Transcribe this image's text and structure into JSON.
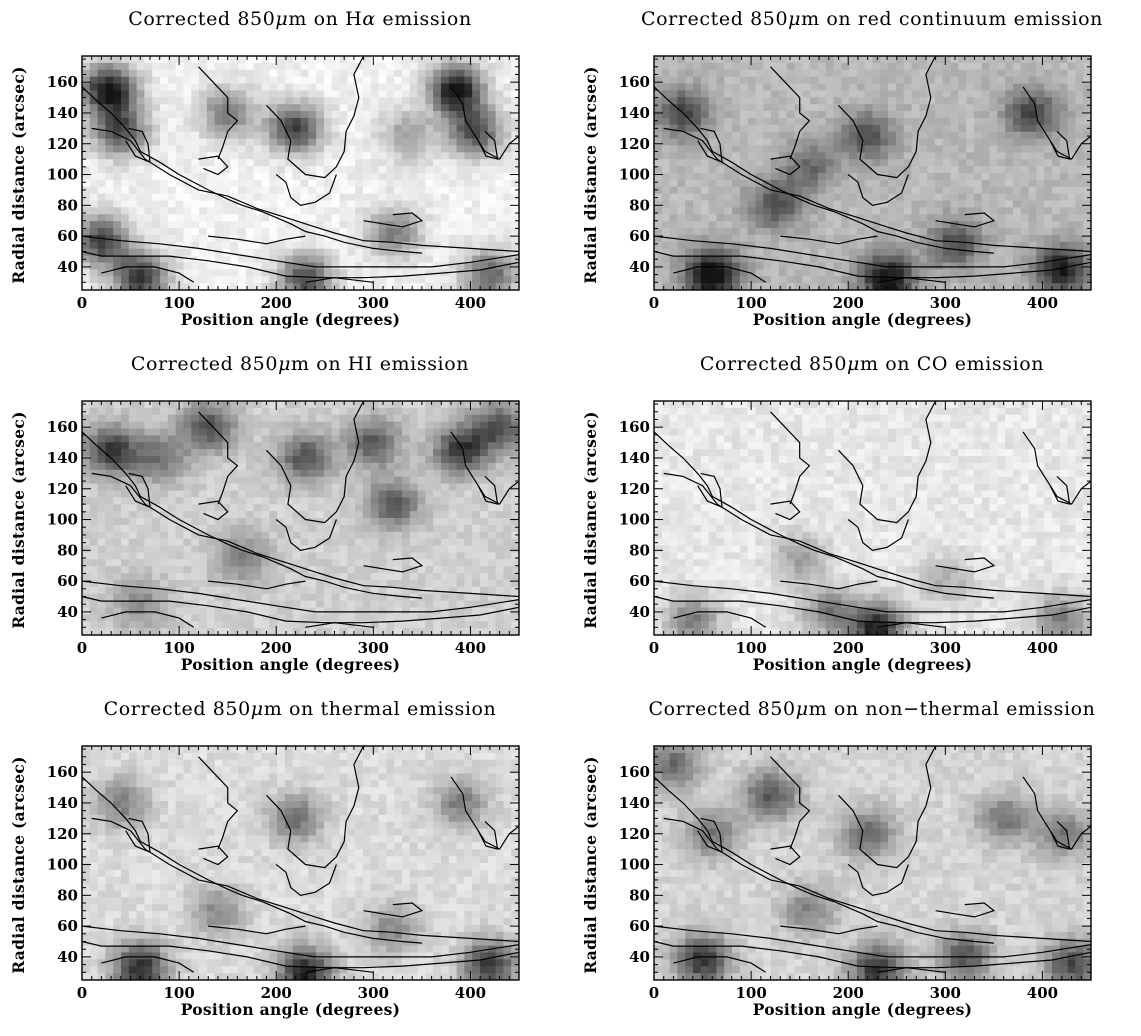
{
  "chart_data": [
    {
      "type": "heatmap",
      "title_prefix": "Corrected 850",
      "title_mu": "μ",
      "title_suffix": "m on H",
      "title_greek": "α",
      "title_tail": " emission",
      "xlabel": "Position angle (degrees)",
      "ylabel": "Radial distance (arcsec)",
      "xlim": [
        0,
        450
      ],
      "ylim": [
        25,
        177
      ],
      "xticks": [
        0,
        100,
        200,
        300,
        400
      ],
      "yticks": [
        40,
        60,
        80,
        100,
        120,
        140,
        160
      ],
      "colormap": "grayscale (darker = brighter emission)",
      "background_level": 0.06,
      "dark_regions": [
        {
          "x": 28,
          "y": 155,
          "strength": 0.95
        },
        {
          "x": 40,
          "y": 128,
          "strength": 0.7
        },
        {
          "x": 220,
          "y": 130,
          "strength": 0.75
        },
        {
          "x": 385,
          "y": 155,
          "strength": 0.95
        },
        {
          "x": 405,
          "y": 128,
          "strength": 0.7
        },
        {
          "x": 150,
          "y": 140,
          "strength": 0.5
        },
        {
          "x": 335,
          "y": 125,
          "strength": 0.35
        },
        {
          "x": 20,
          "y": 57,
          "strength": 0.75
        },
        {
          "x": 60,
          "y": 33,
          "strength": 0.8
        },
        {
          "x": 230,
          "y": 32,
          "strength": 0.7
        },
        {
          "x": 420,
          "y": 35,
          "strength": 0.6
        },
        {
          "x": 320,
          "y": 62,
          "strength": 0.5
        }
      ]
    },
    {
      "type": "heatmap",
      "title_prefix": "Corrected 850",
      "title_mu": "μ",
      "title_suffix": "m on red continuum",
      "title_greek": "",
      "title_tail": " emission",
      "xlabel": "Position angle (degrees)",
      "ylabel": "Radial distance (arcsec)",
      "xlim": [
        0,
        450
      ],
      "ylim": [
        25,
        177
      ],
      "xticks": [
        0,
        100,
        200,
        300,
        400
      ],
      "yticks": [
        40,
        60,
        80,
        100,
        120,
        140,
        160
      ],
      "colormap": "grayscale (darker = brighter emission)",
      "background_level": 0.3,
      "dark_regions": [
        {
          "x": 30,
          "y": 140,
          "strength": 0.5
        },
        {
          "x": 220,
          "y": 125,
          "strength": 0.45
        },
        {
          "x": 390,
          "y": 140,
          "strength": 0.5
        },
        {
          "x": 160,
          "y": 105,
          "strength": 0.35
        },
        {
          "x": 125,
          "y": 80,
          "strength": 0.45
        },
        {
          "x": 60,
          "y": 35,
          "strength": 0.8
        },
        {
          "x": 240,
          "y": 32,
          "strength": 0.75
        },
        {
          "x": 420,
          "y": 38,
          "strength": 0.7
        },
        {
          "x": 310,
          "y": 55,
          "strength": 0.45
        }
      ]
    },
    {
      "type": "heatmap",
      "title_prefix": "Corrected 850",
      "title_mu": "μ",
      "title_suffix": "m on HI",
      "title_greek": "",
      "title_tail": " emission",
      "xlabel": "Position angle (degrees)",
      "ylabel": "Radial distance (arcsec)",
      "xlim": [
        0,
        450
      ],
      "ylim": [
        25,
        177
      ],
      "xticks": [
        0,
        100,
        200,
        300,
        400
      ],
      "yticks": [
        40,
        60,
        80,
        100,
        120,
        140,
        160
      ],
      "colormap": "grayscale (darker = brighter emission)",
      "background_level": 0.2,
      "dark_regions": [
        {
          "x": 30,
          "y": 145,
          "strength": 0.65
        },
        {
          "x": 130,
          "y": 160,
          "strength": 0.55
        },
        {
          "x": 230,
          "y": 140,
          "strength": 0.55
        },
        {
          "x": 300,
          "y": 150,
          "strength": 0.5
        },
        {
          "x": 320,
          "y": 110,
          "strength": 0.5
        },
        {
          "x": 390,
          "y": 145,
          "strength": 0.65
        },
        {
          "x": 430,
          "y": 160,
          "strength": 0.55
        },
        {
          "x": 80,
          "y": 140,
          "strength": 0.4
        },
        {
          "x": 165,
          "y": 75,
          "strength": 0.35
        },
        {
          "x": 60,
          "y": 45,
          "strength": 0.3
        }
      ]
    },
    {
      "type": "heatmap",
      "title_prefix": "Corrected 850",
      "title_mu": "μ",
      "title_suffix": "m on CO",
      "title_greek": "",
      "title_tail": " emission",
      "xlabel": "Position angle (degrees)",
      "ylabel": "Radial distance (arcsec)",
      "xlim": [
        0,
        450
      ],
      "ylim": [
        25,
        177
      ],
      "xticks": [
        0,
        100,
        200,
        300,
        400
      ],
      "yticks": [
        40,
        60,
        80,
        100,
        120,
        140,
        160
      ],
      "colormap": "grayscale (darker = brighter emission)",
      "background_level": 0.1,
      "dark_regions": [
        {
          "x": 230,
          "y": 30,
          "strength": 0.85
        },
        {
          "x": 180,
          "y": 40,
          "strength": 0.45
        },
        {
          "x": 40,
          "y": 35,
          "strength": 0.45
        },
        {
          "x": 420,
          "y": 35,
          "strength": 0.45
        },
        {
          "x": 150,
          "y": 75,
          "strength": 0.3
        },
        {
          "x": 300,
          "y": 60,
          "strength": 0.25
        }
      ]
    },
    {
      "type": "heatmap",
      "title_prefix": "Corrected 850",
      "title_mu": "μ",
      "title_suffix": "m on thermal",
      "title_greek": "",
      "title_tail": " emission",
      "xlabel": "Position angle (degrees)",
      "ylabel": "Radial distance (arcsec)",
      "xlim": [
        0,
        450
      ],
      "ylim": [
        25,
        177
      ],
      "xticks": [
        0,
        100,
        200,
        300,
        400
      ],
      "yticks": [
        40,
        60,
        80,
        100,
        120,
        140,
        160
      ],
      "colormap": "grayscale (darker = brighter emission)",
      "background_level": 0.15,
      "dark_regions": [
        {
          "x": 40,
          "y": 140,
          "strength": 0.4
        },
        {
          "x": 220,
          "y": 130,
          "strength": 0.45
        },
        {
          "x": 390,
          "y": 140,
          "strength": 0.4
        },
        {
          "x": 60,
          "y": 33,
          "strength": 0.75
        },
        {
          "x": 230,
          "y": 30,
          "strength": 0.8
        },
        {
          "x": 420,
          "y": 35,
          "strength": 0.7
        },
        {
          "x": 140,
          "y": 70,
          "strength": 0.35
        },
        {
          "x": 320,
          "y": 58,
          "strength": 0.35
        }
      ]
    },
    {
      "type": "heatmap",
      "title_prefix": "Corrected 850",
      "title_mu": "μ",
      "title_suffix": "m on non−thermal",
      "title_greek": "",
      "title_tail": " emission",
      "xlabel": "Position angle (degrees)",
      "ylabel": "Radial distance (arcsec)",
      "xlim": [
        0,
        450
      ],
      "ylim": [
        25,
        177
      ],
      "xticks": [
        0,
        100,
        200,
        300,
        400
      ],
      "yticks": [
        40,
        60,
        80,
        100,
        120,
        140,
        160
      ],
      "colormap": "grayscale (darker = brighter emission)",
      "background_level": 0.18,
      "dark_regions": [
        {
          "x": 20,
          "y": 165,
          "strength": 0.45
        },
        {
          "x": 120,
          "y": 145,
          "strength": 0.55
        },
        {
          "x": 60,
          "y": 120,
          "strength": 0.4
        },
        {
          "x": 220,
          "y": 120,
          "strength": 0.45
        },
        {
          "x": 360,
          "y": 130,
          "strength": 0.4
        },
        {
          "x": 420,
          "y": 120,
          "strength": 0.4
        },
        {
          "x": 50,
          "y": 38,
          "strength": 0.7
        },
        {
          "x": 230,
          "y": 32,
          "strength": 0.7
        },
        {
          "x": 320,
          "y": 40,
          "strength": 0.55
        },
        {
          "x": 430,
          "y": 35,
          "strength": 0.6
        },
        {
          "x": 160,
          "y": 70,
          "strength": 0.35
        }
      ]
    }
  ],
  "contour_overlay": {
    "description_source": "same contour set drawn on every panel",
    "lines": [
      [
        [
          0,
          60
        ],
        [
          40,
          57
        ],
        [
          80,
          55
        ],
        [
          120,
          52
        ],
        [
          160,
          48
        ],
        [
          200,
          44
        ],
        [
          240,
          40
        ],
        [
          280,
          40
        ],
        [
          320,
          40
        ],
        [
          360,
          40
        ],
        [
          400,
          43
        ],
        [
          450,
          48
        ]
      ],
      [
        [
          0,
          50
        ],
        [
          20,
          47
        ],
        [
          50,
          47
        ],
        [
          90,
          47
        ],
        [
          130,
          44
        ],
        [
          170,
          40
        ],
        [
          210,
          34
        ],
        [
          250,
          33
        ],
        [
          290,
          33
        ],
        [
          330,
          34
        ],
        [
          370,
          36
        ],
        [
          410,
          38
        ],
        [
          450,
          43
        ]
      ],
      [
        [
          20,
          36
        ],
        [
          45,
          40
        ],
        [
          75,
          40
        ],
        [
          100,
          36
        ],
        [
          115,
          30
        ]
      ],
      [
        [
          230,
          30
        ],
        [
          260,
          33
        ],
        [
          300,
          30
        ]
      ],
      [
        [
          0,
          157
        ],
        [
          15,
          148
        ],
        [
          30,
          140
        ],
        [
          45,
          130
        ],
        [
          55,
          122
        ],
        [
          60,
          115
        ],
        [
          80,
          108
        ],
        [
          100,
          100
        ],
        [
          130,
          90
        ],
        [
          150,
          84
        ],
        [
          165,
          80
        ],
        [
          185,
          76
        ],
        [
          200,
          72
        ],
        [
          215,
          68
        ],
        [
          230,
          63
        ],
        [
          250,
          60
        ],
        [
          270,
          56
        ],
        [
          300,
          52
        ],
        [
          330,
          50
        ],
        [
          350,
          49
        ]
      ],
      [
        [
          10,
          130
        ],
        [
          30,
          128
        ],
        [
          50,
          122
        ],
        [
          65,
          110
        ],
        [
          90,
          100
        ],
        [
          120,
          90
        ],
        [
          150,
          86
        ],
        [
          180,
          78
        ],
        [
          210,
          72
        ],
        [
          240,
          66
        ],
        [
          260,
          62
        ],
        [
          290,
          57
        ],
        [
          320,
          56
        ],
        [
          350,
          54
        ],
        [
          400,
          52
        ],
        [
          450,
          50
        ]
      ],
      [
        [
          45,
          122
        ],
        [
          55,
          112
        ],
        [
          70,
          108
        ],
        [
          68,
          120
        ],
        [
          62,
          128
        ],
        [
          48,
          130
        ]
      ],
      [
        [
          120,
          170
        ],
        [
          135,
          160
        ],
        [
          150,
          150
        ],
        [
          150,
          140
        ],
        [
          160,
          135
        ],
        [
          150,
          128
        ],
        [
          145,
          118
        ],
        [
          140,
          110
        ]
      ],
      [
        [
          190,
          145
        ],
        [
          205,
          135
        ],
        [
          215,
          122
        ],
        [
          212,
          110
        ],
        [
          230,
          100
        ],
        [
          250,
          98
        ],
        [
          262,
          105
        ],
        [
          270,
          115
        ],
        [
          272,
          128
        ],
        [
          280,
          138
        ],
        [
          285,
          150
        ],
        [
          280,
          165
        ],
        [
          290,
          177
        ]
      ],
      [
        [
          380,
          157
        ],
        [
          392,
          146
        ],
        [
          395,
          135
        ],
        [
          405,
          125
        ],
        [
          415,
          115
        ],
        [
          430,
          110
        ],
        [
          440,
          120
        ],
        [
          450,
          125
        ]
      ],
      [
        [
          408,
          122
        ],
        [
          416,
          112
        ],
        [
          428,
          110
        ],
        [
          425,
          122
        ],
        [
          415,
          128
        ]
      ],
      [
        [
          130,
          60
        ],
        [
          160,
          58
        ],
        [
          190,
          55
        ],
        [
          210,
          58
        ],
        [
          230,
          60
        ]
      ],
      [
        [
          290,
          70
        ],
        [
          310,
          68
        ],
        [
          330,
          66
        ],
        [
          350,
          70
        ],
        [
          340,
          75
        ],
        [
          320,
          74
        ]
      ],
      [
        [
          120,
          110
        ],
        [
          140,
          112
        ],
        [
          150,
          105
        ],
        [
          140,
          100
        ],
        [
          125,
          104
        ]
      ],
      [
        [
          200,
          100
        ],
        [
          210,
          95
        ],
        [
          215,
          85
        ],
        [
          225,
          80
        ],
        [
          240,
          82
        ],
        [
          255,
          88
        ],
        [
          262,
          100
        ]
      ]
    ]
  }
}
